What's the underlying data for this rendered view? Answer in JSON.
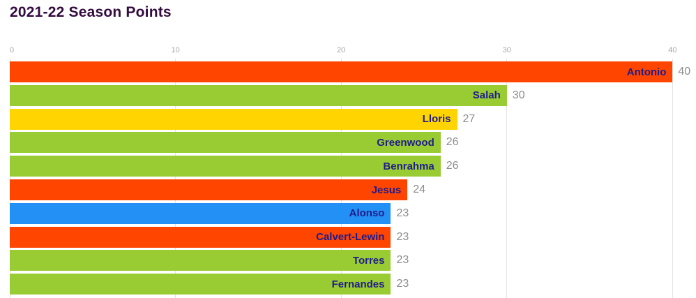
{
  "title": "2021-22 Season Points",
  "colors": {
    "title_text": "#330b3f",
    "bar_label_text": "#1f1c8c",
    "value_label_text": "#8c8c8c",
    "axis_tick_text": "#a6a6a6",
    "gridline": "#e2e2e2",
    "red": "#ff4500",
    "green": "#99cc33",
    "yellow": "#ffd400",
    "blue": "#2290f4"
  },
  "chart_data": {
    "type": "bar",
    "orientation": "horizontal",
    "title": "2021-22 Season Points",
    "xlabel": "",
    "ylabel": "",
    "xlim": [
      0,
      40
    ],
    "x_ticks": [
      0,
      10,
      20,
      30,
      40
    ],
    "grid": true,
    "legend": false,
    "categories": [
      "Antonio",
      "Salah",
      "Lloris",
      "Greenwood",
      "Benrahma",
      "Jesus",
      "Alonso",
      "Calvert-Lewin",
      "Torres",
      "Fernandes"
    ],
    "values": [
      40,
      30,
      27,
      26,
      26,
      24,
      23,
      23,
      23,
      23
    ],
    "value_labels": [
      "40",
      "30",
      "27",
      "26",
      "26",
      "24",
      "23",
      "23",
      "23",
      "23"
    ],
    "bar_colors": [
      "#ff4500",
      "#99cc33",
      "#ffd400",
      "#99cc33",
      "#99cc33",
      "#ff4500",
      "#2290f4",
      "#ff4500",
      "#99cc33",
      "#99cc33"
    ]
  }
}
